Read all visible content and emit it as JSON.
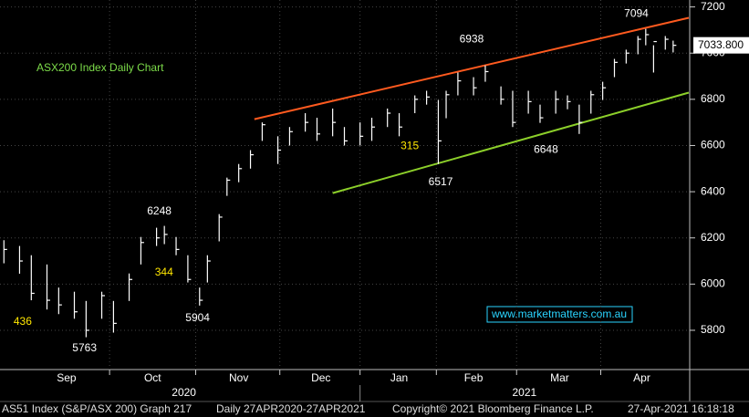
{
  "chart_data": {
    "type": "ohlc",
    "title": "ASX200 Index Daily Chart",
    "title_color": "#7ddc4a",
    "bar_color": "#ffffff",
    "x": [
      1,
      5,
      8,
      12,
      15,
      19,
      22,
      26,
      29,
      33,
      36,
      40,
      42,
      45,
      48,
      51,
      53,
      56,
      58,
      61,
      64,
      67,
      71,
      74,
      78,
      81,
      85,
      88,
      92,
      95,
      99,
      102,
      106,
      109,
      112,
      114,
      117,
      121,
      124,
      128,
      131,
      135,
      138,
      142,
      145,
      148,
      151,
      154,
      157,
      160,
      163,
      165,
      167,
      170,
      172
    ],
    "high": [
      6190,
      6165,
      6125,
      6085,
      5985,
      5967,
      5927,
      5967,
      5927,
      6046,
      6204,
      6244,
      6252,
      6204,
      6125,
      5985,
      6125,
      6303,
      6461,
      6520,
      6580,
      6700,
      6640,
      6680,
      6740,
      6720,
      6760,
      6680,
      6700,
      6720,
      6760,
      6740,
      6817,
      6837,
      6797,
      6837,
      6916,
      6896,
      6947,
      6856,
      6837,
      6837,
      6777,
      6837,
      6817,
      6777,
      6837,
      6876,
      6975,
      7015,
      7074,
      7105,
      7034,
      7074,
      7054
    ],
    "low": [
      6090,
      6045,
      5930,
      5890,
      5870,
      5850,
      5770,
      5850,
      5790,
      5927,
      6085,
      6165,
      6173,
      6125,
      6007,
      5907,
      6007,
      6185,
      6382,
      6441,
      6500,
      6620,
      6520,
      6600,
      6660,
      6620,
      6640,
      6600,
      6600,
      6620,
      6680,
      6640,
      6740,
      6777,
      6520,
      6718,
      6817,
      6817,
      6876,
      6777,
      6680,
      6738,
      6698,
      6738,
      6757,
      6650,
      6738,
      6797,
      6896,
      6955,
      6995,
      7034,
      6916,
      7015,
      7003
    ],
    "close": [
      6150,
      6100,
      5960,
      5930,
      5910,
      5880,
      5800,
      5950,
      5830,
      6020,
      6180,
      6200,
      6215,
      6150,
      6020,
      5930,
      6100,
      6290,
      6450,
      6500,
      6560,
      6690,
      6580,
      6660,
      6700,
      6650,
      6700,
      6620,
      6640,
      6680,
      6740,
      6680,
      6800,
      6810,
      6620,
      6820,
      6880,
      6850,
      6920,
      6800,
      6700,
      6790,
      6720,
      6800,
      6790,
      6700,
      6820,
      6850,
      6960,
      7000,
      7060,
      7080,
      7050,
      7060,
      7033.8
    ],
    "xlim": [
      0,
      176
    ],
    "ylim": [
      5630,
      7230
    ],
    "yticks": [
      5800,
      6000,
      6200,
      6400,
      6600,
      6800,
      7000,
      7200
    ],
    "xticks": [
      {
        "value": 17,
        "label": "Sep"
      },
      {
        "value": 39,
        "label": "Oct"
      },
      {
        "value": 61,
        "label": "Nov"
      },
      {
        "value": 82,
        "label": "Dec"
      },
      {
        "value": 102,
        "label": "Jan"
      },
      {
        "value": 121,
        "label": "Feb"
      },
      {
        "value": 143,
        "label": "Mar"
      },
      {
        "value": 164,
        "label": "Apr"
      }
    ],
    "years": [
      {
        "value": 47,
        "label": "2020"
      },
      {
        "value": 134,
        "label": "2021"
      }
    ],
    "grid": true,
    "last_price": {
      "value": 7033.8,
      "label": "7033.800"
    },
    "trendlines": [
      {
        "color": "#ff5a1f",
        "x": [
          65,
          176
        ],
        "y": [
          6714,
          7153
        ]
      },
      {
        "color": "#8ccf2a",
        "x": [
          85,
          176
        ],
        "y": [
          6394,
          6829
        ]
      }
    ],
    "annotations": [
      {
        "text": "7094",
        "x": 162.6,
        "y": 7169,
        "color": "#ffffff"
      },
      {
        "text": "6938",
        "x": 120.5,
        "y": 7058,
        "color": "#ffffff"
      },
      {
        "text": "6517",
        "x": 112.6,
        "y": 6441,
        "color": "#ffffff"
      },
      {
        "text": "6648",
        "x": 139.5,
        "y": 6580,
        "color": "#ffffff"
      },
      {
        "text": "315",
        "x": 104.7,
        "y": 6596,
        "color": "#ffe600"
      },
      {
        "text": "6248",
        "x": 40.7,
        "y": 6315,
        "color": "#ffffff"
      },
      {
        "text": "344",
        "x": 41.9,
        "y": 6050,
        "color": "#ffe600"
      },
      {
        "text": "5904",
        "x": 50.5,
        "y": 5852,
        "color": "#ffffff"
      },
      {
        "text": "5763",
        "x": 21.6,
        "y": 5722,
        "color": "#ffffff"
      },
      {
        "text": "436",
        "x": 5.8,
        "y": 5837,
        "color": "#ffe600"
      }
    ],
    "watermark": "www.marketmatters.com.au",
    "footer": [
      "AS51 Index (S&P/ASX 200) Graph 217",
      "Daily 27APR2020-27APR2021",
      "Copyright© 2021 Bloomberg Finance L.P.",
      "27-Apr-2021 16:18:18"
    ]
  }
}
